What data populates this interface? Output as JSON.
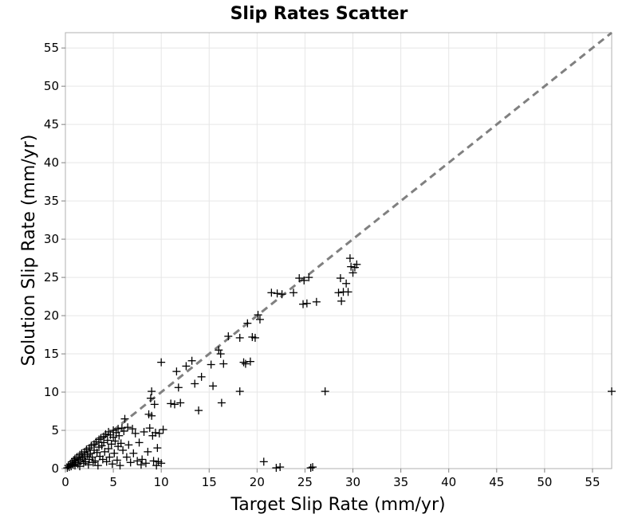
{
  "chart_data": {
    "type": "scatter",
    "title": "Slip Rates Scatter",
    "xlabel": "Target Slip Rate (mm/yr)",
    "ylabel": "Solution Slip Rate (mm/yr)",
    "xlim": [
      0,
      57
    ],
    "ylim": [
      0,
      57
    ],
    "xticks": [
      0,
      5,
      10,
      15,
      20,
      25,
      30,
      35,
      40,
      45,
      50,
      55
    ],
    "yticks": [
      0,
      5,
      10,
      15,
      20,
      25,
      30,
      35,
      40,
      45,
      50,
      55
    ],
    "grid": true,
    "marker": "plus",
    "marker_color": "#000000",
    "reference_line": {
      "from": [
        0,
        0
      ],
      "to": [
        57,
        57
      ],
      "style": "dashed",
      "color": "#808080"
    },
    "points": [
      [
        0.2,
        0.1
      ],
      [
        0.3,
        0.4
      ],
      [
        0.4,
        0.2
      ],
      [
        0.5,
        0.6
      ],
      [
        0.6,
        0.3
      ],
      [
        0.7,
        0.9
      ],
      [
        0.8,
        0.5
      ],
      [
        0.9,
        1.1
      ],
      [
        1.0,
        0.4
      ],
      [
        1.0,
        1.3
      ],
      [
        1.1,
        0.8
      ],
      [
        1.2,
        1.5
      ],
      [
        1.3,
        0.6
      ],
      [
        1.4,
        1.2
      ],
      [
        1.5,
        1.8
      ],
      [
        1.5,
        0.3
      ],
      [
        1.6,
        1.0
      ],
      [
        1.7,
        2.0
      ],
      [
        1.8,
        1.4
      ],
      [
        1.9,
        0.7
      ],
      [
        2.0,
        2.2
      ],
      [
        2.0,
        1.6
      ],
      [
        2.1,
        0.9
      ],
      [
        2.2,
        2.5
      ],
      [
        2.3,
        1.8
      ],
      [
        2.4,
        0.5
      ],
      [
        2.5,
        2.7
      ],
      [
        2.5,
        1.2
      ],
      [
        2.6,
        2.0
      ],
      [
        2.7,
        3.0
      ],
      [
        2.8,
        1.5
      ],
      [
        2.9,
        0.8
      ],
      [
        3.0,
        3.2
      ],
      [
        3.0,
        2.4
      ],
      [
        3.1,
        1.0
      ],
      [
        3.2,
        3.5
      ],
      [
        3.3,
        2.1
      ],
      [
        3.4,
        0.4
      ],
      [
        3.5,
        3.8
      ],
      [
        3.5,
        2.8
      ],
      [
        3.6,
        1.6
      ],
      [
        3.7,
        4.0
      ],
      [
        3.8,
        3.0
      ],
      [
        3.9,
        1.2
      ],
      [
        4.0,
        4.2
      ],
      [
        4.0,
        3.4
      ],
      [
        4.1,
        2.2
      ],
      [
        4.2,
        4.5
      ],
      [
        4.3,
        0.9
      ],
      [
        4.4,
        3.7
      ],
      [
        4.5,
        4.8
      ],
      [
        4.5,
        2.6
      ],
      [
        4.6,
        1.5
      ],
      [
        4.7,
        4.4
      ],
      [
        4.8,
        3.2
      ],
      [
        4.9,
        0.6
      ],
      [
        5.0,
        5.0
      ],
      [
        5.0,
        4.1
      ],
      [
        5.1,
        2.0
      ],
      [
        5.2,
        3.6
      ],
      [
        5.3,
        4.7
      ],
      [
        5.4,
        1.1
      ],
      [
        5.5,
        5.2
      ],
      [
        5.5,
        2.9
      ],
      [
        5.6,
        4.3
      ],
      [
        5.7,
        0.4
      ],
      [
        5.8,
        3.3
      ],
      [
        5.9,
        5.3
      ],
      [
        6.0,
        2.4
      ],
      [
        6.1,
        4.9
      ],
      [
        6.2,
        6.5
      ],
      [
        6.4,
        1.5
      ],
      [
        6.5,
        5.4
      ],
      [
        6.6,
        3.1
      ],
      [
        6.8,
        0.8
      ],
      [
        7.0,
        5.2
      ],
      [
        7.1,
        2.0
      ],
      [
        7.3,
        4.6
      ],
      [
        7.5,
        1.0
      ],
      [
        7.7,
        3.4
      ],
      [
        7.9,
        0.5
      ],
      [
        8.0,
        1.2
      ],
      [
        8.2,
        4.8
      ],
      [
        8.4,
        0.7
      ],
      [
        8.6,
        2.2
      ],
      [
        8.7,
        7.1
      ],
      [
        8.8,
        5.3
      ],
      [
        8.9,
        9.2
      ],
      [
        9.0,
        10.1
      ],
      [
        9.0,
        6.9
      ],
      [
        9.1,
        4.3
      ],
      [
        9.2,
        1.0
      ],
      [
        9.3,
        8.4
      ],
      [
        9.4,
        4.7
      ],
      [
        9.5,
        0.4
      ],
      [
        9.6,
        2.7
      ],
      [
        9.7,
        0.9
      ],
      [
        9.8,
        4.6
      ],
      [
        10.0,
        0.7
      ],
      [
        10.2,
        5.1
      ],
      [
        10.0,
        13.9
      ],
      [
        11.0,
        8.5
      ],
      [
        11.4,
        8.4
      ],
      [
        11.6,
        12.7
      ],
      [
        11.8,
        10.6
      ],
      [
        12.0,
        8.6
      ],
      [
        12.6,
        13.4
      ],
      [
        13.2,
        14.1
      ],
      [
        13.5,
        11.1
      ],
      [
        13.9,
        7.6
      ],
      [
        14.2,
        12.0
      ],
      [
        15.2,
        13.6
      ],
      [
        15.4,
        10.8
      ],
      [
        16.0,
        15.5
      ],
      [
        16.2,
        15.0
      ],
      [
        16.3,
        8.6
      ],
      [
        16.5,
        13.7
      ],
      [
        17.0,
        17.3
      ],
      [
        18.2,
        17.1
      ],
      [
        18.6,
        13.9
      ],
      [
        18.2,
        10.1
      ],
      [
        18.8,
        13.7
      ],
      [
        19.0,
        19.0
      ],
      [
        19.3,
        14.0
      ],
      [
        19.5,
        17.2
      ],
      [
        19.8,
        17.1
      ],
      [
        20.1,
        20.1
      ],
      [
        20.3,
        19.5
      ],
      [
        20.7,
        0.9
      ],
      [
        21.5,
        23.0
      ],
      [
        22.1,
        22.9
      ],
      [
        22.0,
        0.1
      ],
      [
        22.4,
        0.2
      ],
      [
        22.6,
        22.8
      ],
      [
        23.8,
        23.0
      ],
      [
        24.4,
        24.9
      ],
      [
        24.8,
        21.5
      ],
      [
        24.9,
        24.6
      ],
      [
        25.2,
        21.6
      ],
      [
        25.4,
        25.0
      ],
      [
        25.6,
        0.1
      ],
      [
        25.8,
        0.2
      ],
      [
        26.2,
        21.8
      ],
      [
        27.1,
        10.1
      ],
      [
        28.5,
        23.0
      ],
      [
        28.7,
        24.9
      ],
      [
        28.8,
        21.9
      ],
      [
        29.0,
        23.1
      ],
      [
        29.3,
        24.2
      ],
      [
        29.5,
        23.1
      ],
      [
        29.7,
        27.5
      ],
      [
        29.8,
        26.4
      ],
      [
        30.0,
        25.6
      ],
      [
        30.2,
        26.3
      ],
      [
        30.4,
        26.7
      ],
      [
        57.0,
        10.1
      ]
    ]
  }
}
